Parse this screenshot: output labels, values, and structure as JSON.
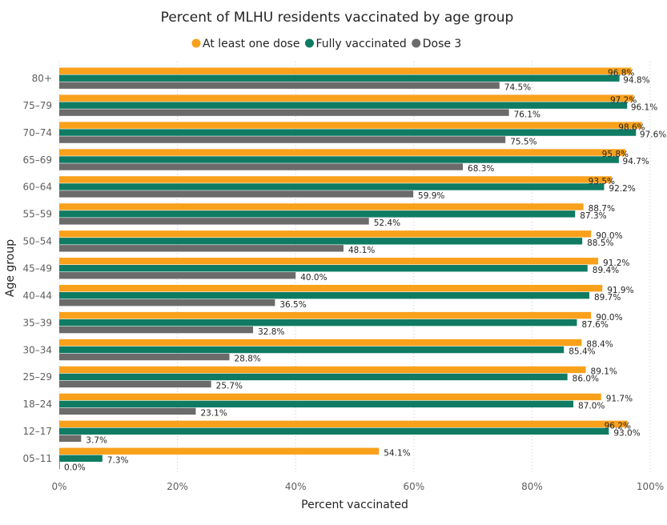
{
  "chart_data": {
    "type": "bar",
    "orientation": "horizontal",
    "title": "Percent of MLHU residents vaccinated by age group",
    "xlabel": "Percent vaccinated",
    "ylabel": "Age group",
    "xlim": [
      0,
      100
    ],
    "x_ticks": [
      "0%",
      "20%",
      "40%",
      "60%",
      "80%",
      "100%"
    ],
    "grid": "vertical dotted",
    "legend_position": "top",
    "categories": [
      "80+",
      "75–79",
      "70–74",
      "65–69",
      "60–64",
      "55–59",
      "50–54",
      "45–49",
      "40–44",
      "35–39",
      "30–34",
      "25–29",
      "18–24",
      "12–17",
      "05–11"
    ],
    "series": [
      {
        "name": "At least one dose",
        "color": "#F9A11B",
        "values": [
          96.8,
          97.2,
          98.6,
          95.8,
          93.5,
          88.7,
          90.0,
          91.2,
          91.9,
          90.0,
          88.4,
          89.1,
          91.7,
          96.2,
          54.1
        ]
      },
      {
        "name": "Fully vaccinated",
        "color": "#0F7B63",
        "values": [
          94.8,
          96.1,
          97.6,
          94.7,
          92.2,
          87.3,
          88.5,
          89.4,
          89.7,
          87.6,
          85.4,
          86.0,
          87.0,
          93.0,
          7.3
        ]
      },
      {
        "name": "Dose 3",
        "color": "#6B6B6B",
        "values": [
          74.5,
          76.1,
          75.5,
          68.3,
          59.9,
          52.4,
          48.1,
          40.0,
          36.5,
          32.8,
          28.8,
          25.7,
          23.1,
          3.7,
          0.0
        ]
      }
    ]
  }
}
